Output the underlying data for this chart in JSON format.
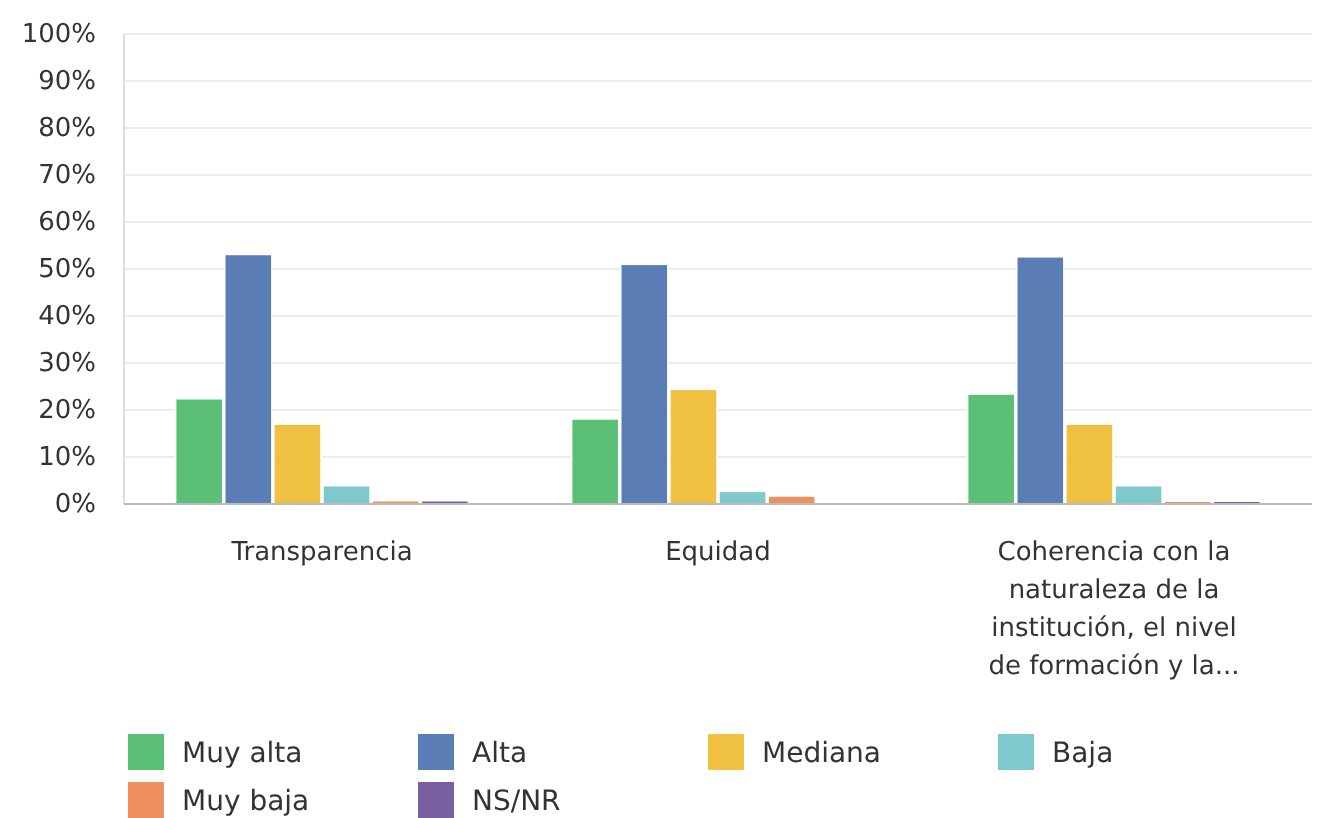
{
  "chart_data": {
    "type": "bar",
    "categories": [
      "Transparencia",
      "Equidad",
      "Coherencia con la naturaleza de la institución, el nivel de formación y la..."
    ],
    "series": [
      {
        "name": "Muy alta",
        "color": "#5bbf75",
        "values": [
          22.4,
          18.1,
          23.4
        ]
      },
      {
        "name": "Alta",
        "color": "#5a7db5",
        "values": [
          53.1,
          51.0,
          52.6
        ]
      },
      {
        "name": "Mediana",
        "color": "#f0c040",
        "values": [
          17.0,
          24.4,
          17.0
        ]
      },
      {
        "name": "Baja",
        "color": "#7fc8cc",
        "values": [
          3.9,
          2.7,
          3.9
        ]
      },
      {
        "name": "Muy baja",
        "color": "#f09060",
        "values": [
          0.7,
          1.7,
          0.6
        ]
      },
      {
        "name": "NS/NR",
        "color": "#7a5fa0",
        "values": [
          0.7,
          0,
          0.6
        ]
      }
    ],
    "ylim": [
      0,
      100
    ],
    "yticks": [
      {
        "value": 0,
        "label": "0%"
      },
      {
        "value": 10,
        "label": "10%"
      },
      {
        "value": 20,
        "label": "20%"
      },
      {
        "value": 30,
        "label": "30%"
      },
      {
        "value": 40,
        "label": "40%"
      },
      {
        "value": 50,
        "label": "50%"
      },
      {
        "value": 60,
        "label": "60%"
      },
      {
        "value": 70,
        "label": "70%"
      },
      {
        "value": 80,
        "label": "80%"
      },
      {
        "value": 90,
        "label": "90%"
      },
      {
        "value": 100,
        "label": "100%"
      }
    ],
    "grid": "y",
    "legend": "bottom"
  }
}
